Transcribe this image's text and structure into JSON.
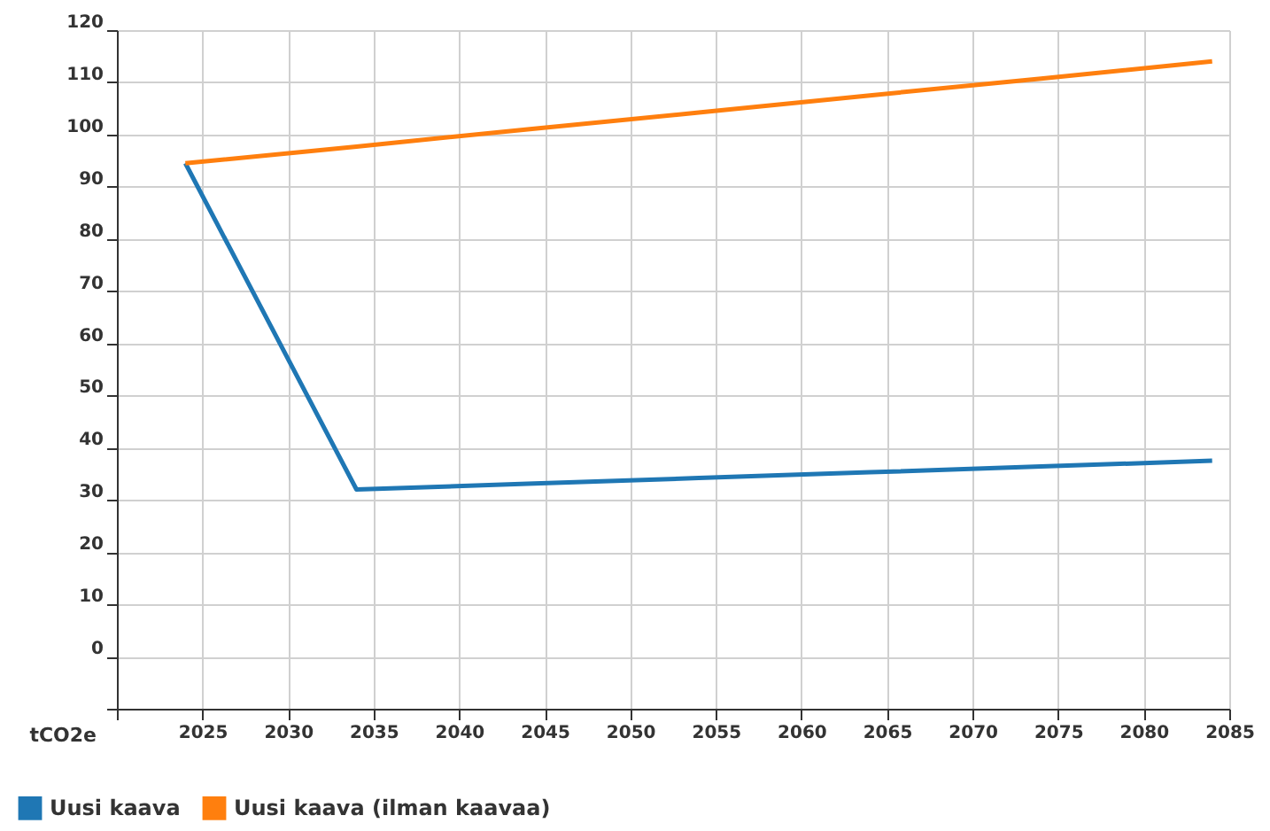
{
  "chart_data": {
    "type": "line",
    "ylabel": "tCO2e",
    "x": [
      2024,
      2034,
      2044,
      2054,
      2064,
      2074,
      2084
    ],
    "series": [
      {
        "name": "Uusi kaava",
        "color": "#1f77b4",
        "values": [
          94.5,
          32,
          33.1,
          34.2,
          35.3,
          36.4,
          37.5
        ]
      },
      {
        "name": "Uusi kaava (ilman kaavaa)",
        "color": "#ff7f0e",
        "values": [
          94.5,
          97.7,
          101,
          104.2,
          107.5,
          110.7,
          114
        ]
      }
    ],
    "xlim": [
      2020,
      2085
    ],
    "xticks": [
      {
        "value": 2020,
        "label": null
      },
      2025,
      2030,
      2035,
      2040,
      2045,
      2050,
      2055,
      2060,
      2065,
      2070,
      2075,
      2080,
      2085
    ],
    "ylim": [
      -10,
      120
    ],
    "yticks": [
      {
        "value": -10,
        "label": null
      },
      0,
      10,
      20,
      30,
      40,
      50,
      60,
      70,
      80,
      90,
      100,
      110,
      120
    ],
    "grid": true,
    "legend": "bottom left",
    "marker": "none",
    "line_style": "solid"
  }
}
